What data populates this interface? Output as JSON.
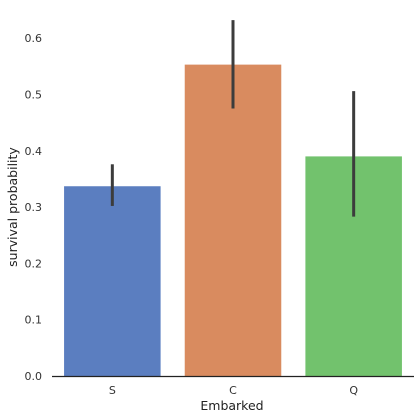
{
  "chart_data": {
    "type": "bar",
    "xlabel": "Embarked",
    "ylabel": "survival probability",
    "categories": [
      "S",
      "C",
      "Q"
    ],
    "values": [
      0.337,
      0.553,
      0.39
    ],
    "error_bars": [
      {
        "low": 0.302,
        "high": 0.376
      },
      {
        "low": 0.475,
        "high": 0.632
      },
      {
        "low": 0.283,
        "high": 0.506
      }
    ],
    "ylim": [
      0,
      0.65
    ],
    "yticks": [
      0.0,
      0.1,
      0.2,
      0.3,
      0.4,
      0.5,
      0.6
    ],
    "ytick_labels": [
      "0.0",
      "0.1",
      "0.2",
      "0.3",
      "0.4",
      "0.5",
      "0.6"
    ],
    "grid": false,
    "colors": [
      "#5b7ec0",
      "#d98b5f",
      "#72c26d"
    ],
    "error_bar_color": "#3c3c3c",
    "axis_color": "#222222"
  }
}
